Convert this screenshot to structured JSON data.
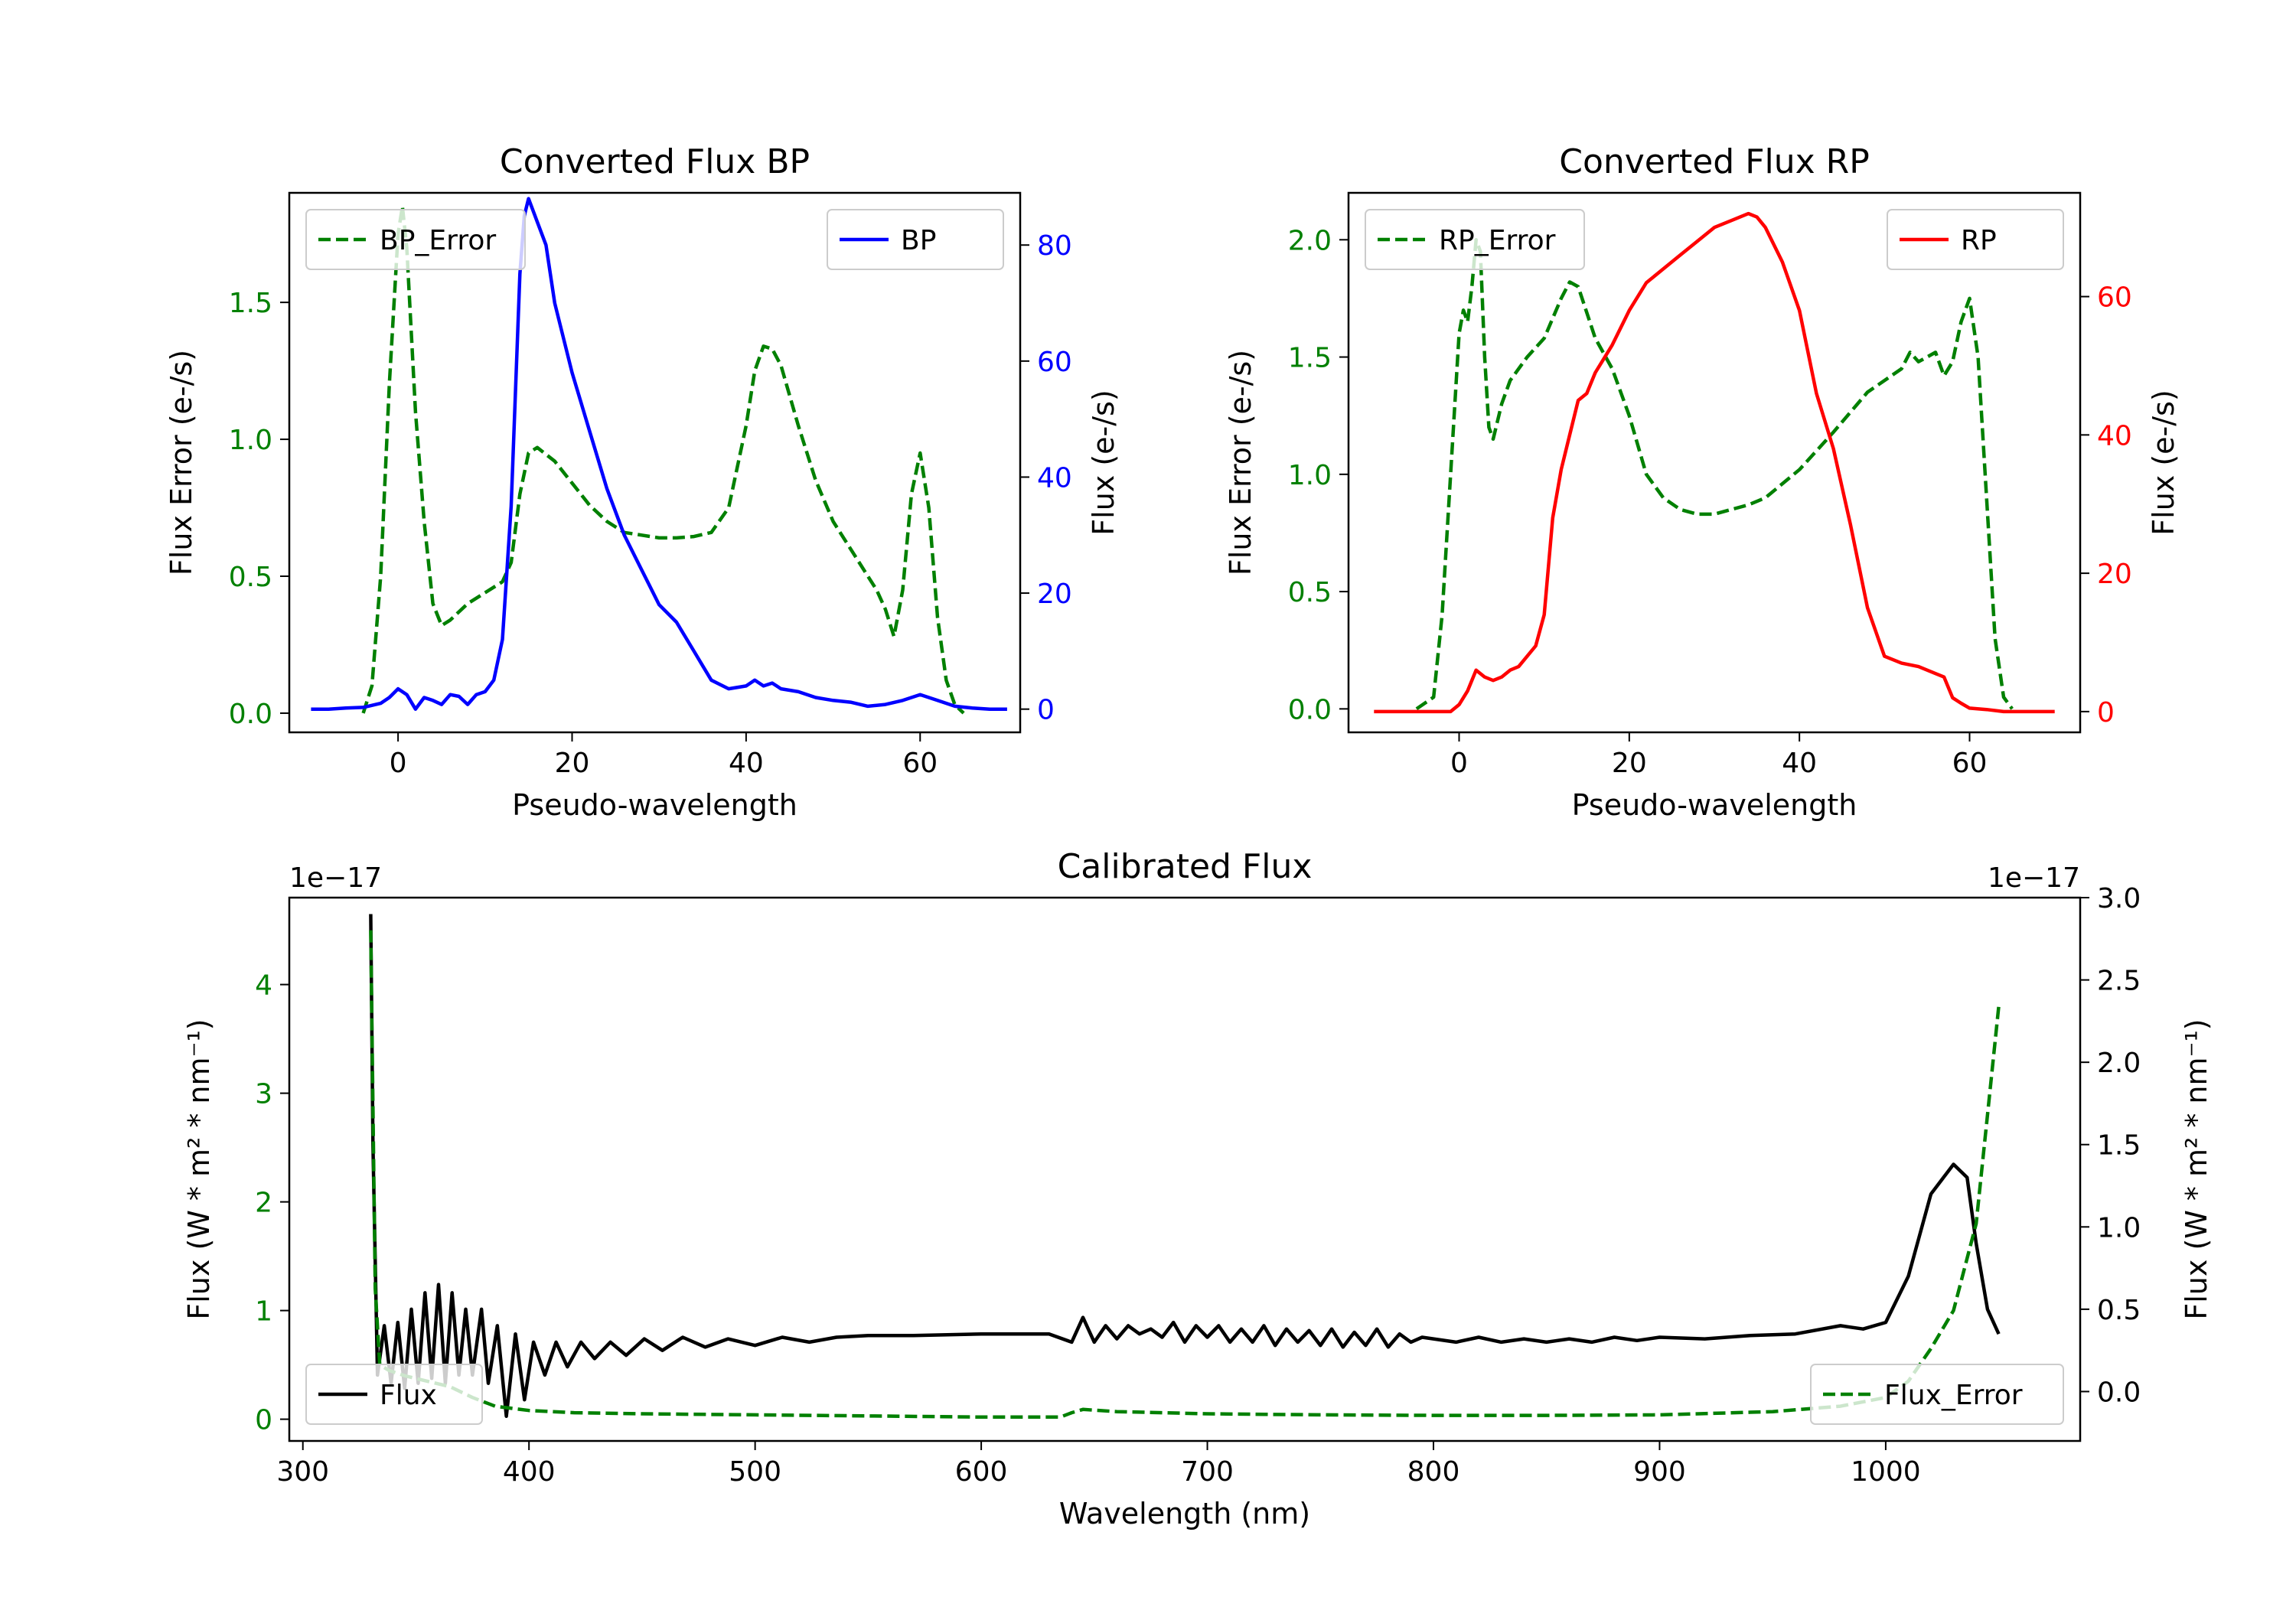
{
  "colors": {
    "error": "#008000",
    "bp": "#0000ff",
    "rp": "#ff0000",
    "flux": "#000000"
  },
  "chart_data": [
    {
      "id": "bp",
      "type": "line",
      "title": "Converted Flux BP",
      "xlabel": "Pseudo-wavelength",
      "ylabel_left": "Flux Error (e-/s)",
      "ylabel_right": "Flux (e-/s)",
      "xlim": [
        -12.5,
        71.5
      ],
      "ylim_left": [
        -0.07,
        1.9
      ],
      "ylim_right": [
        -4,
        89
      ],
      "xticks": [
        0,
        20,
        40,
        60
      ],
      "yticks_left": [
        0.0,
        0.5,
        1.0,
        1.5
      ],
      "yticks_right": [
        0,
        20,
        40,
        60,
        80
      ],
      "legend_left": "BP_Error",
      "legend_right": "BP",
      "series": [
        {
          "name": "BP_Error",
          "axis": "left",
          "style": "dashed",
          "color": "#008000",
          "x": [
            -4,
            -3,
            -2,
            -1,
            0,
            0.5,
            1,
            2,
            3,
            4,
            5,
            6,
            7,
            8,
            10,
            12,
            13,
            14,
            15,
            16,
            18,
            20,
            22,
            24,
            26,
            28,
            30,
            32,
            34,
            36,
            38,
            40,
            41,
            42,
            43,
            44,
            46,
            48,
            50,
            52,
            54,
            55,
            56,
            57,
            58,
            59,
            60,
            61,
            62,
            63,
            64,
            65
          ],
          "y": [
            0.0,
            0.1,
            0.5,
            1.2,
            1.75,
            1.85,
            1.7,
            1.1,
            0.7,
            0.4,
            0.32,
            0.34,
            0.37,
            0.4,
            0.44,
            0.48,
            0.55,
            0.8,
            0.95,
            0.97,
            0.92,
            0.84,
            0.76,
            0.7,
            0.66,
            0.65,
            0.64,
            0.64,
            0.645,
            0.66,
            0.75,
            1.05,
            1.25,
            1.34,
            1.33,
            1.27,
            1.05,
            0.85,
            0.7,
            0.6,
            0.5,
            0.45,
            0.38,
            0.28,
            0.45,
            0.8,
            0.95,
            0.75,
            0.35,
            0.12,
            0.03,
            0.0
          ]
        },
        {
          "name": "BP",
          "axis": "right",
          "style": "solid",
          "color": "#0000ff",
          "x": [
            -10,
            -8,
            -6,
            -4,
            -2,
            -1,
            0,
            1,
            2,
            3,
            4,
            5,
            6,
            7,
            8,
            9,
            10,
            11,
            12,
            13,
            13.5,
            14,
            14.5,
            15,
            15.5,
            16,
            17,
            18,
            20,
            22,
            24,
            26,
            28,
            30,
            32,
            34,
            35,
            36,
            38,
            40,
            41,
            42,
            43,
            44,
            46,
            48,
            50,
            52,
            54,
            56,
            58,
            60,
            62,
            64,
            66,
            68,
            70
          ],
          "y": [
            0,
            0,
            0.2,
            0.3,
            1,
            2,
            3.5,
            2.5,
            0,
            2,
            1.5,
            0.8,
            2.5,
            2.2,
            0.8,
            2.5,
            3,
            5,
            12,
            35,
            55,
            75,
            85,
            88,
            86,
            84,
            80,
            70,
            58,
            48,
            38,
            30,
            24,
            18,
            15,
            10,
            7.5,
            5,
            3.5,
            4,
            5,
            4,
            4.5,
            3.5,
            3,
            2,
            1.5,
            1.2,
            0.5,
            0.8,
            1.5,
            2.5,
            1.5,
            0.5,
            0.2,
            0,
            0
          ]
        }
      ]
    },
    {
      "id": "rp",
      "type": "line",
      "title": "Converted Flux RP",
      "xlabel": "Pseudo-wavelength",
      "ylabel_left": "Flux Error (e-/s)",
      "ylabel_right": "Flux (e-/s)",
      "xlim": [
        -13,
        73
      ],
      "ylim_left": [
        -0.1,
        2.2
      ],
      "ylim_right": [
        -3,
        75
      ],
      "xticks": [
        0,
        20,
        40,
        60
      ],
      "yticks_left": [
        0.0,
        0.5,
        1.0,
        1.5,
        2.0
      ],
      "yticks_right": [
        0,
        20,
        40,
        60
      ],
      "legend_left": "RP_Error",
      "legend_right": "RP",
      "series": [
        {
          "name": "RP_Error",
          "axis": "left",
          "style": "dashed",
          "color": "#008000",
          "x": [
            -5,
            -3,
            -2,
            -1,
            0,
            0.5,
            1,
            1.5,
            2,
            2.5,
            3,
            3.5,
            4,
            5,
            6,
            8,
            10,
            12,
            13,
            14,
            16,
            18,
            20,
            22,
            24,
            26,
            28,
            30,
            32,
            34,
            36,
            40,
            44,
            48,
            52,
            53,
            54,
            55,
            56,
            57,
            58,
            59,
            60,
            61,
            62,
            63,
            64,
            65
          ],
          "y": [
            0.0,
            0.05,
            0.4,
            1.0,
            1.6,
            1.7,
            1.65,
            1.8,
            2.0,
            1.95,
            1.5,
            1.2,
            1.15,
            1.3,
            1.4,
            1.5,
            1.58,
            1.75,
            1.82,
            1.8,
            1.58,
            1.45,
            1.25,
            1.0,
            0.9,
            0.85,
            0.83,
            0.83,
            0.85,
            0.87,
            0.9,
            1.02,
            1.18,
            1.35,
            1.45,
            1.52,
            1.48,
            1.5,
            1.52,
            1.42,
            1.48,
            1.65,
            1.75,
            1.5,
            0.9,
            0.3,
            0.05,
            0.0
          ]
        },
        {
          "name": "RP",
          "axis": "right",
          "style": "solid",
          "color": "#ff0000",
          "x": [
            -10,
            -4,
            -1,
            0,
            1,
            2,
            3,
            4,
            5,
            6,
            7,
            8,
            9,
            10,
            11,
            12,
            13,
            14,
            15,
            16,
            17,
            18,
            20,
            22,
            24,
            26,
            28,
            30,
            32,
            34,
            35,
            36,
            38,
            40,
            42,
            44,
            46,
            48,
            50,
            52,
            54,
            56,
            57,
            58,
            59,
            60,
            62,
            64,
            66,
            68,
            70
          ],
          "y": [
            0,
            0,
            0,
            1,
            3,
            6,
            5,
            4.5,
            5,
            6,
            6.5,
            8,
            9.5,
            14,
            28,
            35,
            40,
            45,
            46,
            49,
            51,
            53,
            58,
            62,
            64,
            66,
            68,
            70,
            71,
            72,
            71.5,
            70,
            65,
            58,
            46,
            38,
            27,
            15,
            8,
            7,
            6.5,
            5.5,
            5,
            2,
            1.2,
            0.5,
            0.3,
            0,
            0,
            0,
            0
          ]
        }
      ]
    },
    {
      "id": "calibrated",
      "type": "line",
      "title": "Calibrated Flux",
      "xlabel": "Wavelength (nm)",
      "ylabel_left": "Flux (W * m² * nm⁻¹)",
      "ylabel_right": "Flux (W * m² * nm⁻¹)",
      "offset_left": "1e−17",
      "offset_right": "1e−17",
      "xlim": [
        294,
        1086
      ],
      "ylim_left": [
        -0.2,
        4.8
      ],
      "ylim_right": [
        -0.3,
        3.0
      ],
      "xticks": [
        300,
        400,
        500,
        600,
        700,
        800,
        900,
        1000
      ],
      "yticks_left": [
        0,
        1,
        2,
        3,
        4
      ],
      "yticks_right": [
        0.0,
        0.5,
        1.0,
        1.5,
        2.0,
        2.5,
        3.0
      ],
      "legend_left": "Flux",
      "legend_right": "Flux_Error",
      "series": [
        {
          "name": "Flux",
          "axis": "right",
          "style": "solid",
          "color": "#000000",
          "x": [
            330,
            331,
            333,
            336,
            339,
            342,
            345,
            348,
            351,
            354,
            357,
            360,
            363,
            366,
            369,
            372,
            375,
            379,
            382,
            386,
            390,
            394,
            398,
            402,
            407,
            412,
            417,
            423,
            429,
            436,
            443,
            451,
            459,
            468,
            478,
            488,
            500,
            512,
            524,
            536,
            550,
            570,
            600,
            630,
            640,
            645,
            650,
            655,
            660,
            665,
            670,
            675,
            680,
            685,
            690,
            695,
            700,
            705,
            710,
            715,
            720,
            725,
            730,
            735,
            740,
            745,
            750,
            755,
            760,
            765,
            770,
            775,
            780,
            785,
            790,
            795,
            800,
            810,
            820,
            830,
            840,
            850,
            860,
            870,
            880,
            890,
            900,
            920,
            940,
            960,
            980,
            990,
            1000,
            1010,
            1020,
            1030,
            1036,
            1040,
            1045,
            1050
          ],
          "y": [
            2.9,
            1.5,
            0.1,
            0.4,
            0.05,
            0.42,
            0.02,
            0.5,
            0.05,
            0.6,
            0.08,
            0.65,
            0.05,
            0.6,
            0.1,
            0.5,
            0.1,
            0.5,
            0.05,
            0.4,
            -0.15,
            0.35,
            -0.05,
            0.3,
            0.1,
            0.3,
            0.15,
            0.3,
            0.2,
            0.3,
            0.22,
            0.32,
            0.25,
            0.33,
            0.27,
            0.32,
            0.28,
            0.33,
            0.3,
            0.33,
            0.34,
            0.34,
            0.35,
            0.35,
            0.3,
            0.45,
            0.3,
            0.4,
            0.32,
            0.4,
            0.35,
            0.38,
            0.33,
            0.42,
            0.3,
            0.4,
            0.33,
            0.4,
            0.3,
            0.38,
            0.3,
            0.4,
            0.28,
            0.38,
            0.3,
            0.37,
            0.28,
            0.38,
            0.27,
            0.36,
            0.28,
            0.38,
            0.27,
            0.35,
            0.3,
            0.33,
            0.32,
            0.3,
            0.33,
            0.3,
            0.32,
            0.3,
            0.32,
            0.3,
            0.33,
            0.31,
            0.33,
            0.32,
            0.34,
            0.35,
            0.4,
            0.38,
            0.42,
            0.7,
            1.2,
            1.38,
            1.3,
            0.9,
            0.5,
            0.35
          ]
        },
        {
          "name": "Flux_Error",
          "axis": "left",
          "style": "dashed",
          "color": "#008000",
          "x": [
            330,
            332,
            334,
            338,
            345,
            355,
            365,
            375,
            385,
            400,
            420,
            450,
            500,
            550,
            600,
            635,
            640,
            645,
            660,
            700,
            750,
            800,
            850,
            900,
            950,
            980,
            1000,
            1010,
            1020,
            1030,
            1040,
            1045,
            1050
          ],
          "y": [
            4.5,
            1.2,
            0.5,
            0.45,
            0.4,
            0.35,
            0.3,
            0.2,
            0.12,
            0.08,
            0.06,
            0.05,
            0.04,
            0.03,
            0.02,
            0.02,
            0.06,
            0.09,
            0.07,
            0.05,
            0.04,
            0.035,
            0.035,
            0.04,
            0.07,
            0.12,
            0.2,
            0.35,
            0.65,
            1.0,
            1.8,
            2.8,
            3.8
          ]
        }
      ]
    }
  ]
}
